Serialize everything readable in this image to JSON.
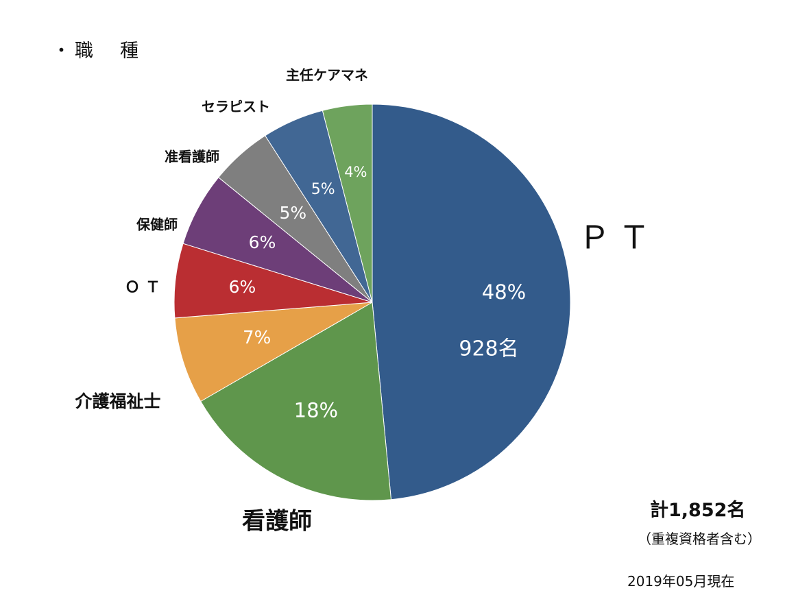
{
  "heading": "・職　種",
  "total_label": "計1,852名",
  "note": "（重複資格者含む）",
  "as_of": "2019年05月現在",
  "chart_data": {
    "type": "pie",
    "title": "",
    "start": "12 o'clock, clockwise",
    "slices": [
      {
        "label": "ＰＴ",
        "value": 928,
        "percent": "48%",
        "count_label": "928名",
        "color": "#335b8b"
      },
      {
        "label": "看護師",
        "value": 18,
        "percent": "18%",
        "color": "#5f964c"
      },
      {
        "label": "介護福祉士",
        "value": 7,
        "percent": "7%",
        "color": "#e6a048"
      },
      {
        "label": "ＯＴ",
        "value": 6,
        "percent": "6%",
        "color": "#ba2e32"
      },
      {
        "label": "保健師",
        "value": 6,
        "percent": "6%",
        "color": "#6d3e78"
      },
      {
        "label": "准看護師",
        "value": 5,
        "percent": "5%",
        "color": "#7f7f7f"
      },
      {
        "label": "セラピスト",
        "value": 5,
        "percent": "5%",
        "color": "#416794"
      },
      {
        "label": "主任ケアマネ",
        "value": 4,
        "percent": "4%",
        "color": "#6ea35d"
      }
    ]
  }
}
